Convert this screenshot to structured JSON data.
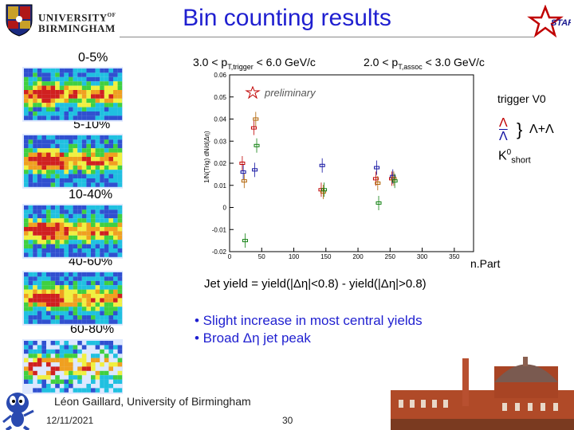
{
  "header": {
    "title": "Bin counting results",
    "university_line1": "UNIVERSITY",
    "university_of": "OF",
    "university_line2": "BIRMINGHAM",
    "star_logo_text": "STAR"
  },
  "panels": [
    {
      "label": "0-5%"
    },
    {
      "label": "5-10%"
    },
    {
      "label": "10-40%"
    },
    {
      "label": "40-60%"
    },
    {
      "label": "60-80%"
    }
  ],
  "plot": {
    "pt_trigger_prefix": "3.0 < p",
    "pt_trigger_sub": "T,trigger",
    "pt_trigger_suffix": " < 6.0 GeV/c",
    "pt_assoc_prefix": "2.0 < p",
    "pt_assoc_sub": "T,assoc",
    "pt_assoc_suffix": " < 3.0 GeV/c",
    "preliminary": "preliminary",
    "trigger": "trigger V0",
    "legend_lambda": "Λ",
    "legend_antilambda": "Λ",
    "legend_sum": "Λ+Λ",
    "legend_k0": "K",
    "legend_k0_sup": "0",
    "legend_k0_sub": "short",
    "xlabel": "n.Part",
    "colors": {
      "lambda": "#c00000",
      "antilambda": "#1010a0",
      "sum": "#b06000",
      "k0": "#108010",
      "extra": "#d080d0"
    }
  },
  "chart_data": {
    "type": "scatter",
    "xlabel": "n.Part",
    "ylabel": "1/N(Trig) dN/d(Δη)",
    "xlim": [
      0,
      380
    ],
    "ylim": [
      -0.02,
      0.06
    ],
    "x_ticks": [
      0,
      50,
      100,
      150,
      200,
      250,
      300,
      350
    ],
    "y_ticks": [
      -0.02,
      -0.01,
      0,
      0.01,
      0.02,
      0.03,
      0.04,
      0.05,
      0.06
    ],
    "series": [
      {
        "name": "Λ",
        "color": "#c00000",
        "points": [
          [
            22,
            0.02
          ],
          [
            40,
            0.036
          ],
          [
            145,
            0.008
          ],
          [
            230,
            0.013
          ],
          [
            255,
            0.013
          ]
        ]
      },
      {
        "name": "Λ-bar",
        "color": "#1010a0",
        "points": [
          [
            22,
            0.016
          ],
          [
            40,
            0.017
          ],
          [
            145,
            0.019
          ],
          [
            230,
            0.018
          ],
          [
            255,
            0.014
          ]
        ]
      },
      {
        "name": "Λ+Λ-bar",
        "color": "#b06000",
        "points": [
          [
            22,
            0.012
          ],
          [
            40,
            0.04
          ],
          [
            145,
            0.007
          ],
          [
            230,
            0.011
          ],
          [
            255,
            0.013
          ]
        ]
      },
      {
        "name": "K0short",
        "color": "#108010",
        "points": [
          [
            22,
            -0.015
          ],
          [
            40,
            0.028
          ],
          [
            145,
            0.008
          ],
          [
            230,
            0.002
          ],
          [
            255,
            0.012
          ]
        ]
      }
    ]
  },
  "jet_yield": "Jet yield = yield(|Δη|<0.8) - yield(|Δη|>0.8)",
  "bullets": [
    "• Slight increase in most central yields",
    "• Broad Δη jet peak"
  ],
  "footer": {
    "author": "Léon Gaillard, University of Birmingham",
    "date": "12/11/2021",
    "page": "30"
  }
}
